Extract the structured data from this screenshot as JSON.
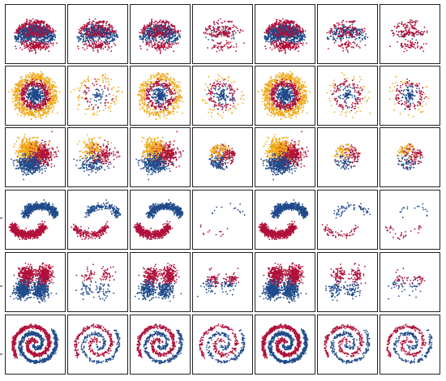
{
  "figure": {
    "description_rows": 6,
    "description_cols": 7
  },
  "colors": {
    "red": "#b0103a",
    "blue": "#1f4a8a",
    "orange": "#f0a818",
    "frame": "#222222",
    "background": "#ffffff"
  },
  "chart_data": {
    "type": "scatter",
    "layout": "grid",
    "rows": 6,
    "cols": 7,
    "title": "",
    "xlabel": "",
    "ylabel": "",
    "grid": false,
    "legend": "none",
    "xlim": [
      -1,
      1
    ],
    "ylim": [
      -1,
      1
    ],
    "row_datasets": [
      {
        "dataset": "noisy_petals",
        "classes": [
          "red",
          "blue"
        ],
        "column_density": [
          1.0,
          0.55,
          0.55,
          0.25,
          1.0,
          0.25,
          0.25
        ],
        "column_pattern": [
          "full",
          "full",
          "full",
          "petals_only",
          "full",
          "sparse_mixed",
          "petals_only"
        ]
      },
      {
        "dataset": "concentric_circles",
        "classes": [
          "orange",
          "red",
          "blue"
        ],
        "column_density": [
          1.0,
          0.12,
          0.55,
          0.3,
          1.0,
          0.25,
          0.2
        ],
        "column_pattern": [
          "full",
          "sparse",
          "full",
          "ring_only",
          "full",
          "ring_only",
          "ring_only"
        ]
      },
      {
        "dataset": "three_gaussians",
        "classes": [
          "orange",
          "red",
          "blue"
        ],
        "column_density": [
          1.0,
          0.3,
          0.7,
          0.35,
          1.0,
          0.2,
          0.2
        ],
        "column_pattern": [
          "full",
          "sparse",
          "full",
          "center",
          "full",
          "center",
          "center"
        ]
      },
      {
        "dataset": "two_moons",
        "classes": [
          "red",
          "blue"
        ],
        "column_density": [
          1.0,
          0.3,
          0.8,
          0.02,
          1.0,
          0.08,
          0.03
        ],
        "column_pattern": [
          "full",
          "sparse",
          "full",
          "few",
          "full",
          "few",
          "few"
        ]
      },
      {
        "dataset": "four_blobs",
        "classes": [
          "red",
          "blue"
        ],
        "column_density": [
          1.0,
          0.1,
          0.55,
          0.35,
          1.0,
          0.2,
          0.15
        ],
        "column_pattern": [
          "full",
          "sparse",
          "full",
          "band",
          "full",
          "sparse",
          "band"
        ]
      },
      {
        "dataset": "two_spirals",
        "classes": [
          "red",
          "blue"
        ],
        "column_density": [
          1.0,
          0.3,
          0.55,
          0.3,
          1.0,
          0.35,
          0.3
        ],
        "column_pattern": [
          "full",
          "sparse",
          "full",
          "sparse",
          "full",
          "sparse",
          "sparse"
        ]
      }
    ]
  }
}
